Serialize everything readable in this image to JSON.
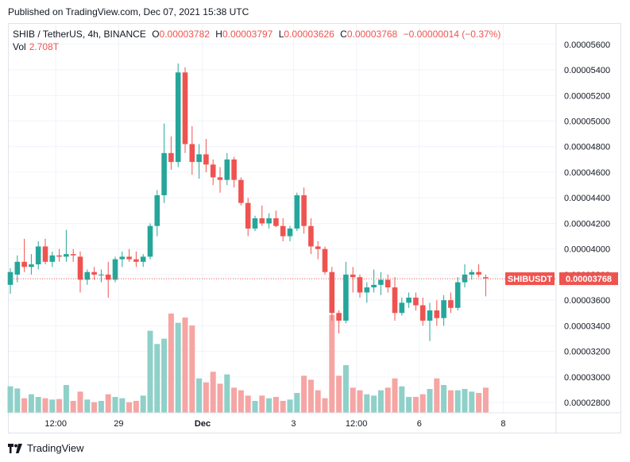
{
  "header": {
    "published": "Published on TradingView.com, Dec 07, 2021 15:38 UTC"
  },
  "legend": {
    "symbol": "SHIB / TetherUS, 4h, BINANCE",
    "open_label": "O",
    "open": "0.00003782",
    "high_label": "H",
    "high": "0.00003797",
    "low_label": "L",
    "low": "0.00003626",
    "close_label": "C",
    "close": "0.00003768",
    "change": "−0.00000014 (−0.37%)",
    "vol_label": "Vol",
    "vol": "2.708T"
  },
  "price_tag": {
    "symbol": "SHIBUSDT",
    "value": "0.00003768"
  },
  "footer": {
    "brand": "TradingView"
  },
  "colors": {
    "up": "#26a69a",
    "down": "#ef5350",
    "up_vol": "#8fd0c8",
    "down_vol": "#f5a5a3",
    "grid": "#f0f3fa"
  },
  "chart_data": {
    "type": "candlestick",
    "title": "SHIB / TetherUS, 4h, BINANCE",
    "ylim": [
      2.72e-05,
      5.76e-05
    ],
    "y_ticks": [
      "0.00005600",
      "0.00005400",
      "0.00005200",
      "0.00005000",
      "0.00004800",
      "0.00004600",
      "0.00004400",
      "0.00004200",
      "0.00004000",
      "0.00003800",
      "0.00003600",
      "0.00003400",
      "0.00003200",
      "0.00003000",
      "0.00002800"
    ],
    "x_ticks": [
      "12:00",
      "29",
      "Dec",
      "3",
      "12:00",
      "6",
      "8"
    ],
    "x_tick_index": [
      6.5,
      15.5,
      27.5,
      40.5,
      49.5,
      58.5,
      70.5
    ],
    "last_close": 3.768e-05,
    "candles": [
      {
        "o": 3.72,
        "h": 3.85,
        "l": 3.65,
        "c": 3.82,
        "v": 1.0
      },
      {
        "o": 3.8,
        "h": 3.95,
        "l": 3.74,
        "c": 3.9,
        "v": 0.92
      },
      {
        "o": 3.9,
        "h": 4.08,
        "l": 3.82,
        "c": 3.86,
        "v": 0.55
      },
      {
        "o": 3.86,
        "h": 3.96,
        "l": 3.8,
        "c": 3.88,
        "v": 0.7
      },
      {
        "o": 3.88,
        "h": 4.06,
        "l": 3.84,
        "c": 4.02,
        "v": 0.6
      },
      {
        "o": 4.02,
        "h": 4.08,
        "l": 3.88,
        "c": 3.9,
        "v": 0.55
      },
      {
        "o": 3.9,
        "h": 3.98,
        "l": 3.86,
        "c": 3.95,
        "v": 0.5
      },
      {
        "o": 3.95,
        "h": 4.0,
        "l": 3.9,
        "c": 3.94,
        "v": 0.52
      },
      {
        "o": 3.94,
        "h": 4.15,
        "l": 3.9,
        "c": 3.96,
        "v": 1.05
      },
      {
        "o": 3.96,
        "h": 4.0,
        "l": 3.9,
        "c": 3.95,
        "v": 0.45
      },
      {
        "o": 3.94,
        "h": 3.98,
        "l": 3.66,
        "c": 3.76,
        "v": 0.8
      },
      {
        "o": 3.76,
        "h": 3.84,
        "l": 3.72,
        "c": 3.82,
        "v": 0.5
      },
      {
        "o": 3.82,
        "h": 3.86,
        "l": 3.76,
        "c": 3.8,
        "v": 0.4
      },
      {
        "o": 3.8,
        "h": 3.84,
        "l": 3.74,
        "c": 3.8,
        "v": 0.45
      },
      {
        "o": 3.8,
        "h": 3.9,
        "l": 3.62,
        "c": 3.76,
        "v": 0.7
      },
      {
        "o": 3.76,
        "h": 3.94,
        "l": 3.74,
        "c": 3.92,
        "v": 0.6
      },
      {
        "o": 3.92,
        "h": 3.98,
        "l": 3.86,
        "c": 3.94,
        "v": 0.55
      },
      {
        "o": 3.94,
        "h": 4.0,
        "l": 3.9,
        "c": 3.92,
        "v": 0.4
      },
      {
        "o": 3.92,
        "h": 3.98,
        "l": 3.86,
        "c": 3.9,
        "v": 0.45
      },
      {
        "o": 3.9,
        "h": 3.96,
        "l": 3.86,
        "c": 3.94,
        "v": 0.65
      },
      {
        "o": 3.94,
        "h": 4.2,
        "l": 3.92,
        "c": 4.18,
        "v": 3.1
      },
      {
        "o": 4.18,
        "h": 4.46,
        "l": 4.1,
        "c": 4.42,
        "v": 2.6
      },
      {
        "o": 4.42,
        "h": 4.98,
        "l": 4.36,
        "c": 4.75,
        "v": 2.8
      },
      {
        "o": 4.75,
        "h": 4.88,
        "l": 4.62,
        "c": 4.68,
        "v": 3.75
      },
      {
        "o": 4.68,
        "h": 5.45,
        "l": 4.64,
        "c": 5.38,
        "v": 3.4
      },
      {
        "o": 5.38,
        "h": 5.42,
        "l": 4.75,
        "c": 4.82,
        "v": 3.6
      },
      {
        "o": 4.82,
        "h": 4.96,
        "l": 4.58,
        "c": 4.68,
        "v": 3.3
      },
      {
        "o": 4.68,
        "h": 4.82,
        "l": 4.55,
        "c": 4.74,
        "v": 1.3
      },
      {
        "o": 4.74,
        "h": 4.86,
        "l": 4.6,
        "c": 4.66,
        "v": 1.15
      },
      {
        "o": 4.66,
        "h": 4.7,
        "l": 4.5,
        "c": 4.56,
        "v": 1.55
      },
      {
        "o": 4.56,
        "h": 4.64,
        "l": 4.44,
        "c": 4.54,
        "v": 1.1
      },
      {
        "o": 4.54,
        "h": 4.75,
        "l": 4.5,
        "c": 4.7,
        "v": 1.45
      },
      {
        "o": 4.7,
        "h": 4.72,
        "l": 4.48,
        "c": 4.54,
        "v": 0.95
      },
      {
        "o": 4.54,
        "h": 4.56,
        "l": 4.34,
        "c": 4.36,
        "v": 0.85
      },
      {
        "o": 4.36,
        "h": 4.4,
        "l": 4.1,
        "c": 4.16,
        "v": 0.65
      },
      {
        "o": 4.16,
        "h": 4.26,
        "l": 4.14,
        "c": 4.24,
        "v": 0.45
      },
      {
        "o": 4.24,
        "h": 4.34,
        "l": 4.18,
        "c": 4.2,
        "v": 0.65
      },
      {
        "o": 4.2,
        "h": 4.28,
        "l": 4.16,
        "c": 4.24,
        "v": 0.55
      },
      {
        "o": 4.24,
        "h": 4.3,
        "l": 4.17,
        "c": 4.18,
        "v": 0.6
      },
      {
        "o": 4.18,
        "h": 4.24,
        "l": 4.06,
        "c": 4.1,
        "v": 0.45
      },
      {
        "o": 4.1,
        "h": 4.18,
        "l": 4.06,
        "c": 4.16,
        "v": 0.5
      },
      {
        "o": 4.16,
        "h": 4.44,
        "l": 4.14,
        "c": 4.42,
        "v": 0.75
      },
      {
        "o": 4.42,
        "h": 4.48,
        "l": 4.12,
        "c": 4.18,
        "v": 1.4
      },
      {
        "o": 4.18,
        "h": 4.24,
        "l": 3.96,
        "c": 4.02,
        "v": 1.25
      },
      {
        "o": 4.02,
        "h": 4.06,
        "l": 3.92,
        "c": 4.0,
        "v": 0.85
      },
      {
        "o": 4.0,
        "h": 4.02,
        "l": 3.8,
        "c": 3.82,
        "v": 0.55
      },
      {
        "o": 3.82,
        "h": 3.86,
        "l": 3.44,
        "c": 3.5,
        "v": 3.7
      },
      {
        "o": 3.5,
        "h": 3.52,
        "l": 3.34,
        "c": 3.44,
        "v": 1.4
      },
      {
        "o": 3.44,
        "h": 3.9,
        "l": 3.42,
        "c": 3.8,
        "v": 1.8
      },
      {
        "o": 3.8,
        "h": 3.86,
        "l": 3.66,
        "c": 3.78,
        "v": 0.95
      },
      {
        "o": 3.78,
        "h": 3.8,
        "l": 3.62,
        "c": 3.66,
        "v": 0.85
      },
      {
        "o": 3.66,
        "h": 3.74,
        "l": 3.58,
        "c": 3.7,
        "v": 0.7
      },
      {
        "o": 3.7,
        "h": 3.84,
        "l": 3.66,
        "c": 3.72,
        "v": 0.65
      },
      {
        "o": 3.72,
        "h": 3.82,
        "l": 3.64,
        "c": 3.76,
        "v": 0.85
      },
      {
        "o": 3.76,
        "h": 3.8,
        "l": 3.66,
        "c": 3.7,
        "v": 0.95
      },
      {
        "o": 3.7,
        "h": 3.78,
        "l": 3.44,
        "c": 3.5,
        "v": 1.3
      },
      {
        "o": 3.5,
        "h": 3.62,
        "l": 3.48,
        "c": 3.58,
        "v": 1.0
      },
      {
        "o": 3.58,
        "h": 3.66,
        "l": 3.54,
        "c": 3.62,
        "v": 0.6
      },
      {
        "o": 3.62,
        "h": 3.66,
        "l": 3.52,
        "c": 3.56,
        "v": 0.6
      },
      {
        "o": 3.56,
        "h": 3.62,
        "l": 3.4,
        "c": 3.44,
        "v": 0.7
      },
      {
        "o": 3.44,
        "h": 3.58,
        "l": 3.28,
        "c": 3.52,
        "v": 0.9
      },
      {
        "o": 3.52,
        "h": 3.6,
        "l": 3.4,
        "c": 3.46,
        "v": 1.3
      },
      {
        "o": 3.46,
        "h": 3.64,
        "l": 3.4,
        "c": 3.6,
        "v": 1.05
      },
      {
        "o": 3.6,
        "h": 3.66,
        "l": 3.5,
        "c": 3.54,
        "v": 0.85
      },
      {
        "o": 3.54,
        "h": 3.78,
        "l": 3.52,
        "c": 3.74,
        "v": 0.85
      },
      {
        "o": 3.74,
        "h": 3.88,
        "l": 3.7,
        "c": 3.8,
        "v": 0.9
      },
      {
        "o": 3.8,
        "h": 3.84,
        "l": 3.76,
        "c": 3.82,
        "v": 0.8
      },
      {
        "o": 3.82,
        "h": 3.88,
        "l": 3.78,
        "c": 3.8,
        "v": 0.75
      },
      {
        "o": 3.78,
        "h": 3.8,
        "l": 3.63,
        "c": 3.77,
        "v": 0.95
      }
    ]
  }
}
